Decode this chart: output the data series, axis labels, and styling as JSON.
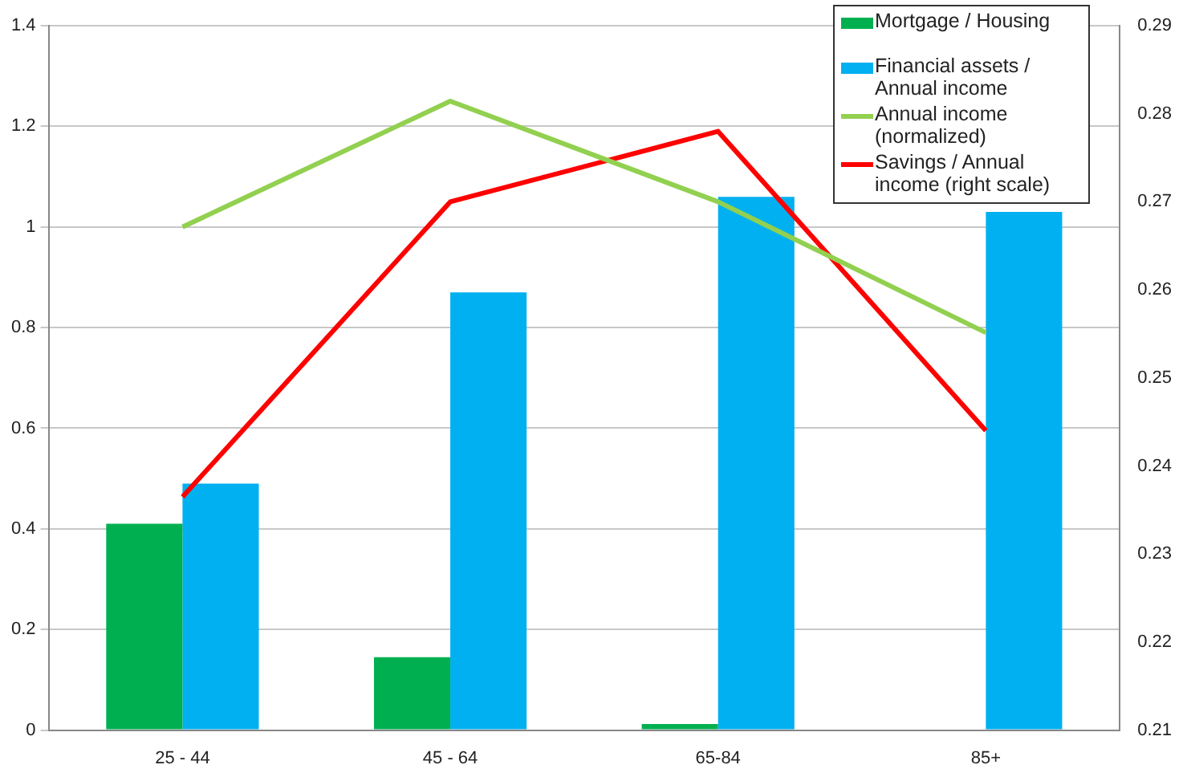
{
  "chart_data": {
    "type": "bar",
    "categories": [
      "25 - 44",
      "45 - 64",
      "65-84",
      "85+"
    ],
    "series": [
      {
        "name": "Mortgage / Housing",
        "color": "#00b050",
        "values": [
          0.41,
          0.145,
          0.012,
          null
        ]
      },
      {
        "name": "Financial assets / Annual income",
        "color": "#00b0f0",
        "values": [
          0.49,
          0.87,
          1.06,
          1.03
        ]
      },
      {
        "name": "Annual income (normalized)",
        "type": "line",
        "color": "#92d050",
        "values": [
          1.0,
          1.25,
          1.05,
          0.79
        ]
      },
      {
        "name": "Savings / Annual income (right scale)",
        "type": "line",
        "axis": "y2",
        "color": "#ff0000",
        "values": [
          0.2365,
          0.27,
          0.278,
          0.244
        ]
      }
    ],
    "ylim": [
      0,
      1.4
    ],
    "yticks": [
      0,
      0.2,
      0.4,
      0.6,
      0.8,
      1,
      1.2,
      1.4
    ],
    "y2lim": [
      0.21,
      0.29
    ],
    "y2ticks": [
      0.21,
      0.22,
      0.23,
      0.24,
      0.25,
      0.26,
      0.27,
      0.28,
      0.29
    ],
    "grid": "y",
    "legend": "top right",
    "marker": "none"
  }
}
